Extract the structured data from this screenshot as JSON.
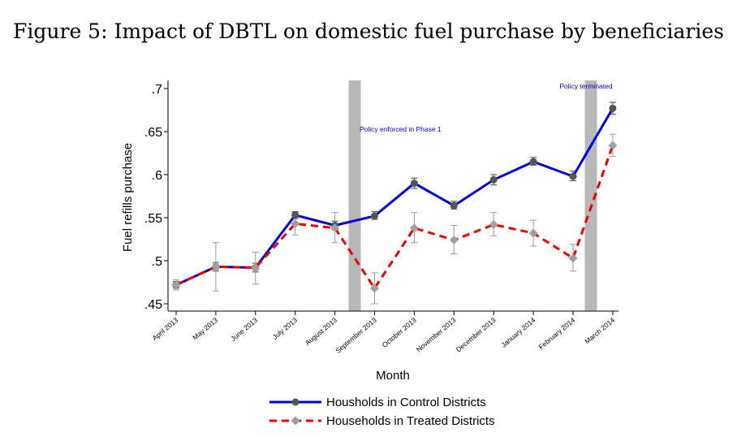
{
  "figure_title": "Figure 5: Impact of DBTL on domestic fuel purchase by beneficiaries",
  "chart_data": {
    "type": "line",
    "title": "Figure 5: Impact of DBTL on domestic fuel purchase by beneficiaries",
    "xlabel": "Month",
    "ylabel": "Fuel refills purchase",
    "categories": [
      "April 2013",
      "May 2013",
      "June 2013",
      "July 2013",
      "August 2013",
      "September 2013",
      "October 2013",
      "November 2013",
      "December 2013",
      "January 2014",
      "February 2014",
      "March 2014"
    ],
    "yticks": [
      0.45,
      0.5,
      0.55,
      0.6,
      0.65,
      0.7
    ],
    "ytick_labels": [
      ".45",
      ".5",
      ".55",
      ".6",
      ".65",
      ".7"
    ],
    "ylim": [
      0.44,
      0.71
    ],
    "grid": false,
    "legend_position": "bottom",
    "series": [
      {
        "name": "Housholds in Control Districts",
        "color": "#0000dd",
        "marker_color": "#555555",
        "line_style": "solid",
        "marker": "circle",
        "values": [
          0.472,
          0.493,
          0.492,
          0.553,
          0.541,
          0.552,
          0.59,
          0.564,
          0.594,
          0.615,
          0.598,
          0.677
        ],
        "ci_low": [
          0.468,
          0.488,
          0.487,
          0.549,
          0.536,
          0.548,
          0.584,
          0.56,
          0.588,
          0.611,
          0.593,
          0.67
        ],
        "ci_high": [
          0.476,
          0.498,
          0.497,
          0.557,
          0.546,
          0.557,
          0.596,
          0.569,
          0.6,
          0.62,
          0.604,
          0.684
        ]
      },
      {
        "name": "Households in Treated Districts",
        "color": "#ee0000",
        "marker_color": "#a0a0a0",
        "line_style": "dashed",
        "marker": "diamond",
        "values": [
          0.472,
          0.493,
          0.492,
          0.543,
          0.538,
          0.468,
          0.538,
          0.524,
          0.542,
          0.532,
          0.503,
          0.634
        ],
        "ci_low": [
          0.466,
          0.465,
          0.473,
          0.53,
          0.521,
          0.45,
          0.521,
          0.508,
          0.529,
          0.517,
          0.488,
          0.621
        ],
        "ci_high": [
          0.478,
          0.521,
          0.51,
          0.556,
          0.556,
          0.486,
          0.556,
          0.541,
          0.556,
          0.547,
          0.519,
          0.647
        ]
      }
    ],
    "events": [
      {
        "label": "Policy enforced in Phase 1",
        "month_index": 4.5,
        "label_color": "#0000cc"
      },
      {
        "label": "Policy terminated",
        "month_index": 10.45,
        "label_color": "#0000cc"
      }
    ]
  }
}
